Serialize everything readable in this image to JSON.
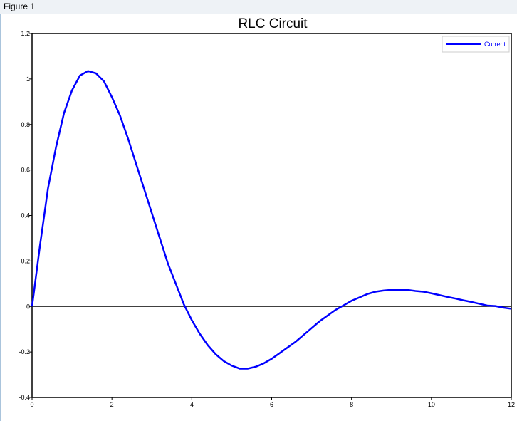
{
  "window": {
    "title": "Figure 1"
  },
  "chart_data": {
    "type": "line",
    "title": "RLC Circuit",
    "xlabel": "",
    "ylabel": "",
    "xlim": [
      0,
      12
    ],
    "ylim": [
      -0.4,
      1.2
    ],
    "xticks": [
      "0",
      "2",
      "4",
      "6",
      "8",
      "10",
      "12"
    ],
    "yticks": [
      "-0.4",
      "-0.2",
      "0",
      "0.2",
      "0.4",
      "0.6",
      "0.8",
      "1",
      "1.2"
    ],
    "grid": false,
    "legend": "top-right",
    "zero_line": true,
    "series": [
      {
        "name": "Current",
        "color": "#0000ff",
        "x": [
          0,
          0.2,
          0.4,
          0.6,
          0.8,
          1.0,
          1.2,
          1.4,
          1.6,
          1.8,
          2.0,
          2.2,
          2.4,
          2.6,
          2.8,
          3.0,
          3.2,
          3.4,
          3.6,
          3.8,
          4.0,
          4.2,
          4.4,
          4.6,
          4.8,
          5.0,
          5.2,
          5.4,
          5.6,
          5.8,
          6.0,
          6.2,
          6.4,
          6.6,
          6.8,
          7.0,
          7.2,
          7.4,
          7.6,
          7.8,
          8.0,
          8.2,
          8.4,
          8.6,
          8.8,
          9.0,
          9.2,
          9.4,
          9.6,
          9.8,
          10.0,
          10.2,
          10.4,
          10.6,
          10.8,
          11.0,
          11.2,
          11.4,
          11.6,
          11.8,
          12.0
        ],
        "y": [
          0,
          0.27,
          0.52,
          0.7,
          0.85,
          0.95,
          1.015,
          1.035,
          1.025,
          0.99,
          0.92,
          0.84,
          0.74,
          0.63,
          0.52,
          0.41,
          0.3,
          0.19,
          0.1,
          0.01,
          -0.06,
          -0.12,
          -0.17,
          -0.21,
          -0.24,
          -0.26,
          -0.273,
          -0.273,
          -0.265,
          -0.25,
          -0.23,
          -0.205,
          -0.18,
          -0.155,
          -0.125,
          -0.095,
          -0.065,
          -0.04,
          -0.015,
          0.005,
          0.025,
          0.04,
          0.055,
          0.065,
          0.07,
          0.073,
          0.074,
          0.073,
          0.068,
          0.065,
          0.058,
          0.05,
          0.042,
          0.035,
          0.027,
          0.02,
          0.012,
          0.004,
          0.002,
          -0.005,
          -0.01
        ]
      }
    ]
  }
}
